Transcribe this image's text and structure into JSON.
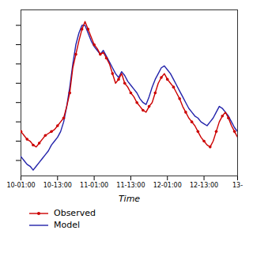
{
  "chart_data": {
    "type": "line",
    "xlabel": "Time",
    "categories": [
      "10-01:00",
      null,
      null,
      null,
      null,
      null,
      null,
      null,
      null,
      null,
      null,
      null,
      "10-13:00",
      null,
      null,
      null,
      null,
      null,
      null,
      null,
      null,
      null,
      null,
      null,
      "11-01:00",
      null,
      null,
      null,
      null,
      null,
      null,
      null,
      null,
      null,
      null,
      null,
      "11-13:00",
      null,
      null,
      null,
      null,
      null,
      null,
      null,
      null,
      null,
      null,
      null,
      "12-01:00",
      null,
      null,
      null,
      null,
      null,
      null,
      null,
      null,
      null,
      null,
      null,
      "12-13:00",
      null,
      null,
      null,
      null,
      null,
      null,
      null,
      null,
      null,
      null,
      "13-"
    ],
    "series": [
      {
        "name": "Observed",
        "color": "#cc0000",
        "marker": "circle",
        "values": [
          4.5,
          4.3,
          4.1,
          4.0,
          3.8,
          3.7,
          3.9,
          4.1,
          4.3,
          4.4,
          4.5,
          4.6,
          4.8,
          5.0,
          5.2,
          5.8,
          6.5,
          7.8,
          8.5,
          9.2,
          9.8,
          10.2,
          9.8,
          9.4,
          9.0,
          8.8,
          8.5,
          8.6,
          8.3,
          8.0,
          7.5,
          7.0,
          7.2,
          7.5,
          7.0,
          6.8,
          6.5,
          6.3,
          6.0,
          5.8,
          5.6,
          5.5,
          5.8,
          6.0,
          6.5,
          7.0,
          7.3,
          7.5,
          7.2,
          7.0,
          6.8,
          6.5,
          6.2,
          5.8,
          5.5,
          5.2,
          5.0,
          4.8,
          4.5,
          4.2,
          4.0,
          3.8,
          3.7,
          4.0,
          4.5,
          5.0,
          5.3,
          5.5,
          5.2,
          4.8,
          4.5,
          4.2
        ]
      },
      {
        "name": "Model",
        "color": "#2222aa",
        "values": [
          3.2,
          3.0,
          2.8,
          2.7,
          2.5,
          2.7,
          2.9,
          3.1,
          3.3,
          3.5,
          3.8,
          4.0,
          4.2,
          4.5,
          5.0,
          5.8,
          6.8,
          8.0,
          9.0,
          9.6,
          10.0,
          10.0,
          9.6,
          9.2,
          8.9,
          8.7,
          8.5,
          8.7,
          8.4,
          8.1,
          7.8,
          7.5,
          7.3,
          7.6,
          7.4,
          7.1,
          6.9,
          6.7,
          6.5,
          6.2,
          6.0,
          5.9,
          6.3,
          6.8,
          7.2,
          7.5,
          7.8,
          7.9,
          7.7,
          7.5,
          7.2,
          6.9,
          6.6,
          6.3,
          6.0,
          5.7,
          5.5,
          5.3,
          5.2,
          5.0,
          4.9,
          4.8,
          5.0,
          5.2,
          5.5,
          5.8,
          5.7,
          5.5,
          5.3,
          5.0,
          4.7,
          4.5
        ]
      }
    ],
    "ylim": [
      2.2,
      10.8
    ],
    "yticks": [
      3.0,
      4.0,
      5.0,
      6.0,
      7.0,
      8.0,
      9.0,
      10.0
    ],
    "tick_labels": "x",
    "grid": false,
    "legend": "lower left"
  }
}
